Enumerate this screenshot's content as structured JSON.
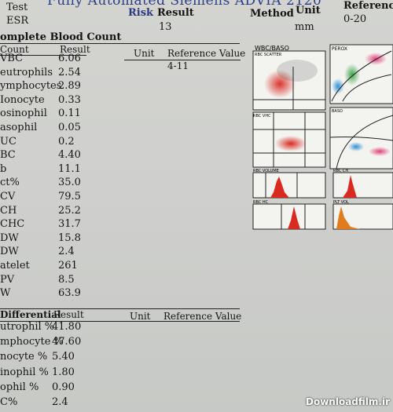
{
  "header": {
    "banner": "Fully Automated Siemens ADVIA 2120",
    "test_label": "Test",
    "esr_label": "ESR",
    "risk_label": "Risk",
    "result_label": "Result",
    "esr_value": "13",
    "method_label": "Method",
    "unit_label": "Unit",
    "esr_unit": "mm",
    "reference_label": "Reference",
    "esr_reference": "0-20"
  },
  "cbc": {
    "title": "omplete Blood Count",
    "col_count": "Count",
    "col_result": "Result",
    "col_unit": "Unit",
    "col_reference": "Reference Value",
    "wbc_reference": "4-11",
    "rows": [
      {
        "label": "VBC",
        "value": "6.06"
      },
      {
        "label": "eutrophils",
        "value": "2.54"
      },
      {
        "label": "ymphocytes",
        "value": "2.89"
      },
      {
        "label": "Ionocyte",
        "value": "0.33"
      },
      {
        "label": "osinophil",
        "value": "0.11"
      },
      {
        "label": "asophil",
        "value": "0.05"
      },
      {
        "label": "UC",
        "value": "0.2"
      },
      {
        "label": "BC",
        "value": "4.40"
      },
      {
        "label": "b",
        "value": "11.1"
      },
      {
        "label": "ct%",
        "value": "35.0"
      },
      {
        "label": "CV",
        "value": "79.5"
      },
      {
        "label": "CH",
        "value": "25.2"
      },
      {
        "label": "CHC",
        "value": "31.7"
      },
      {
        "label": "DW",
        "value": "15.8"
      },
      {
        "label": "DW",
        "value": "2.4"
      },
      {
        "label": "atelet",
        "value": "261"
      },
      {
        "label": "PV",
        "value": "8.5"
      },
      {
        "label": "W",
        "value": "63.9"
      }
    ]
  },
  "differential": {
    "title": "Differential",
    "col_result": "Result",
    "col_unit": "Unit",
    "col_reference": "Reference Value",
    "rows": [
      {
        "label": "utrophil %",
        "value": "41.80"
      },
      {
        "label": "mphocyte %",
        "value": "47.60"
      },
      {
        "label": "nocyte %",
        "value": "5.40"
      },
      {
        "label": "inophil %",
        "value": "1.80"
      },
      {
        "label": "ophil %",
        "value": "0.90"
      },
      {
        "label": "C%",
        "value": "2.4"
      }
    ]
  },
  "plots": {
    "wbc_baso": "WBC/BASO",
    "wbc_scatter": "RBC SCATTER",
    "perox": "PEROX",
    "rbc_vhc": "RBC VHC",
    "baso": "BASO",
    "rbc_volume": "RBC VOLUME",
    "rbc_ch": "RBC CH",
    "rbc_hc": "RBC HC",
    "plt_vol": "PLT VOL"
  },
  "watermark": "Downloadfilm.ir"
}
